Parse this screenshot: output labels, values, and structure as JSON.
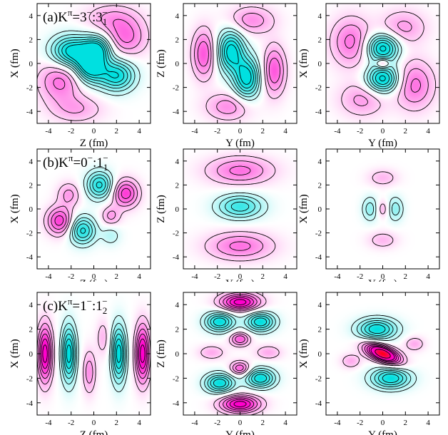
{
  "figure": {
    "rows": [
      {
        "row_label": {
          "prefix": "(a)K",
          "sup1": "π",
          "mid": "=3",
          "sup2": "−",
          "sep": ":3",
          "sub": "1",
          "sup3": "−"
        },
        "panels": [
          {
            "xlabel": "Z (fm)",
            "ylabel": "X (fm)"
          },
          {
            "xlabel": "Y (fm)",
            "ylabel": "Z (fm)"
          },
          {
            "xlabel": "Y (fm)",
            "ylabel": "X (fm)"
          }
        ]
      },
      {
        "row_label": {
          "prefix": "(b)K",
          "sup1": "π",
          "mid": "=0",
          "sup2": "−",
          "sep": ":1",
          "sub": "1",
          "sup3": "−"
        },
        "panels": [
          {
            "xlabel": "Z (fm)",
            "ylabel": "X (fm)"
          },
          {
            "xlabel": "Y (fm)",
            "ylabel": "Z (fm)"
          },
          {
            "xlabel": "Y (fm)",
            "ylabel": "X (fm)"
          }
        ]
      },
      {
        "row_label": {
          "prefix": "(c)K",
          "sup1": "π",
          "mid": "=1",
          "sup2": "−",
          "sep": ":1",
          "sub": "2",
          "sup3": "−"
        },
        "panels": [
          {
            "xlabel": "Z (fm)",
            "ylabel": "X (fm)"
          },
          {
            "xlabel": "Y (fm)",
            "ylabel": "Z (fm)"
          },
          {
            "xlabel": "Y (fm)",
            "ylabel": "X (fm)"
          }
        ]
      }
    ]
  },
  "chart_data": {
    "type": "heatmap",
    "description_units": "fm",
    "xlim": [
      -5,
      5
    ],
    "ylim": [
      -5,
      5
    ],
    "ticks": [
      -4,
      -2,
      0,
      2,
      4
    ],
    "tick_labels": [
      "-4",
      "-2",
      "0",
      "2",
      "4"
    ],
    "colors": {
      "positive": "#ff00cc",
      "negative": "#00e0e0",
      "strong_positive": "#ff0000",
      "contour": "#000000"
    },
    "panels": [
      {
        "row": 0,
        "col": 0,
        "lobes": [
          {
            "x": -2.0,
            "y": 1.0,
            "a": -1.0,
            "sx": 1.2,
            "sy": 0.9
          },
          {
            "x": 0.3,
            "y": 1.2,
            "a": -0.9,
            "sx": 0.9,
            "sy": 0.8
          },
          {
            "x": -0.3,
            "y": -0.3,
            "a": -1.0,
            "sx": 0.9,
            "sy": 0.9
          },
          {
            "x": 2.0,
            "y": -1.0,
            "a": -0.9,
            "sx": 1.1,
            "sy": 0.9
          },
          {
            "x": -3.0,
            "y": -1.5,
            "a": 0.5,
            "sx": 1.3,
            "sy": 1.2
          },
          {
            "x": 2.8,
            "y": 2.2,
            "a": 0.5,
            "sx": 1.3,
            "sy": 1.1
          },
          {
            "x": 1.5,
            "y": 3.8,
            "a": 0.3,
            "sx": 1.6,
            "sy": 0.8
          },
          {
            "x": -1.5,
            "y": -3.8,
            "a": 0.3,
            "sx": 1.6,
            "sy": 0.8
          }
        ]
      },
      {
        "row": 0,
        "col": 1,
        "lobes": [
          {
            "x": -0.8,
            "y": 1.0,
            "a": -1.0,
            "sx": 0.8,
            "sy": 1.2
          },
          {
            "x": 0.6,
            "y": -1.2,
            "a": -1.0,
            "sx": 0.8,
            "sy": 1.2
          },
          {
            "x": -3.2,
            "y": 0.8,
            "a": 0.6,
            "sx": 0.7,
            "sy": 1.4
          },
          {
            "x": 3.0,
            "y": -0.6,
            "a": 0.6,
            "sx": 0.7,
            "sy": 1.4
          },
          {
            "x": -1.0,
            "y": -3.6,
            "a": 0.4,
            "sx": 1.4,
            "sy": 0.8
          },
          {
            "x": 1.0,
            "y": 3.6,
            "a": 0.4,
            "sx": 1.4,
            "sy": 0.8
          }
        ]
      },
      {
        "row": 0,
        "col": 2,
        "lobes": [
          {
            "x": 0.0,
            "y": 1.3,
            "a": -1.0,
            "sx": 1.0,
            "sy": 0.8
          },
          {
            "x": 0.0,
            "y": -1.3,
            "a": -1.0,
            "sx": 1.0,
            "sy": 0.8
          },
          {
            "x": 0.0,
            "y": 0.0,
            "a": 0.6,
            "sx": 0.4,
            "sy": 0.3
          },
          {
            "x": -2.8,
            "y": 1.8,
            "a": 0.5,
            "sx": 1.2,
            "sy": 1.4
          },
          {
            "x": 2.8,
            "y": -1.8,
            "a": 0.5,
            "sx": 1.2,
            "sy": 1.4
          },
          {
            "x": -1.8,
            "y": -3.0,
            "a": 0.35,
            "sx": 1.4,
            "sy": 1.0
          },
          {
            "x": 1.8,
            "y": 3.0,
            "a": 0.35,
            "sx": 1.4,
            "sy": 1.0
          }
        ]
      },
      {
        "row": 1,
        "col": 0,
        "lobes": [
          {
            "x": 0.5,
            "y": 2.0,
            "a": -0.8,
            "sx": 0.8,
            "sy": 0.8
          },
          {
            "x": -1.0,
            "y": -1.8,
            "a": -0.8,
            "sx": 0.8,
            "sy": 0.8
          },
          {
            "x": -2.2,
            "y": 1.2,
            "a": 0.35,
            "sx": 0.7,
            "sy": 0.7
          },
          {
            "x": 2.8,
            "y": 1.3,
            "a": 0.7,
            "sx": 0.8,
            "sy": 0.8
          },
          {
            "x": -3.0,
            "y": -1.0,
            "a": 0.7,
            "sx": 0.8,
            "sy": 0.8
          },
          {
            "x": 1.5,
            "y": -0.6,
            "a": 0.35,
            "sx": 0.6,
            "sy": 0.6
          },
          {
            "x": 1.5,
            "y": -2.2,
            "a": -0.25,
            "sx": 0.6,
            "sy": 0.6
          }
        ]
      },
      {
        "row": 1,
        "col": 1,
        "lobes": [
          {
            "x": 0.0,
            "y": 0.2,
            "a": -0.7,
            "sx": 1.4,
            "sy": 0.7
          },
          {
            "x": 0.0,
            "y": 3.2,
            "a": 0.5,
            "sx": 2.0,
            "sy": 0.8
          },
          {
            "x": 0.0,
            "y": -3.1,
            "a": 0.5,
            "sx": 2.0,
            "sy": 0.8
          }
        ]
      },
      {
        "row": 1,
        "col": 2,
        "lobes": [
          {
            "x": 0.0,
            "y": 0.0,
            "a": 0.3,
            "sx": 0.4,
            "sy": 0.5
          },
          {
            "x": -1.1,
            "y": 0.0,
            "a": -0.4,
            "sx": 0.5,
            "sy": 0.7
          },
          {
            "x": 1.1,
            "y": 0.0,
            "a": -0.4,
            "sx": 0.5,
            "sy": 0.7
          },
          {
            "x": 0.0,
            "y": 2.6,
            "a": 0.25,
            "sx": 0.9,
            "sy": 0.5
          },
          {
            "x": 0.0,
            "y": -2.6,
            "a": 0.25,
            "sx": 0.9,
            "sy": 0.5
          }
        ]
      },
      {
        "row": 2,
        "col": 0,
        "lobes": [
          {
            "x": -4.3,
            "y": 0.0,
            "a": 1.0,
            "sx": 0.45,
            "sy": 1.6
          },
          {
            "x": -2.2,
            "y": 0.0,
            "a": -1.0,
            "sx": 0.45,
            "sy": 1.6
          },
          {
            "x": 2.2,
            "y": 0.0,
            "a": -1.0,
            "sx": 0.45,
            "sy": 1.6
          },
          {
            "x": 4.3,
            "y": 0.0,
            "a": 1.0,
            "sx": 0.45,
            "sy": 1.6
          },
          {
            "x": -0.4,
            "y": -1.5,
            "a": 0.4,
            "sx": 0.4,
            "sy": 1.2
          },
          {
            "x": 0.8,
            "y": 1.3,
            "a": 0.25,
            "sx": 0.4,
            "sy": 1.0
          }
        ]
      },
      {
        "row": 2,
        "col": 1,
        "lobes": [
          {
            "x": 0.0,
            "y": 4.2,
            "a": 1.0,
            "sx": 1.2,
            "sy": 0.5
          },
          {
            "x": -1.8,
            "y": 2.6,
            "a": -0.9,
            "sx": 0.9,
            "sy": 0.55
          },
          {
            "x": 1.8,
            "y": 2.6,
            "a": -0.9,
            "sx": 0.9,
            "sy": 0.55
          },
          {
            "x": 0.0,
            "y": 1.2,
            "a": 0.6,
            "sx": 0.6,
            "sy": 0.4
          },
          {
            "x": 0.0,
            "y": -1.2,
            "a": 0.6,
            "sx": 0.6,
            "sy": 0.4
          },
          {
            "x": -1.8,
            "y": -2.4,
            "a": -0.9,
            "sx": 0.9,
            "sy": 0.55
          },
          {
            "x": 1.8,
            "y": -2.0,
            "a": -0.9,
            "sx": 0.9,
            "sy": 0.55
          },
          {
            "x": 0.0,
            "y": -4.1,
            "a": 1.0,
            "sx": 1.2,
            "sy": 0.5
          },
          {
            "x": -2.5,
            "y": 0.1,
            "a": 0.3,
            "sx": 0.8,
            "sy": 0.4
          },
          {
            "x": 2.5,
            "y": 0.1,
            "a": 0.3,
            "sx": 0.8,
            "sy": 0.4
          }
        ]
      },
      {
        "row": 2,
        "col": 2,
        "lobes": [
          {
            "x": 0.0,
            "y": 0.0,
            "a": 1.5,
            "sx": 1.1,
            "sy": 0.45,
            "rot": -20
          },
          {
            "x": -0.5,
            "y": 2.0,
            "a": -0.9,
            "sx": 1.2,
            "sy": 0.6
          },
          {
            "x": 0.7,
            "y": -2.0,
            "a": -0.9,
            "sx": 1.2,
            "sy": 0.6
          },
          {
            "x": 2.8,
            "y": 0.8,
            "a": 0.3,
            "sx": 0.6,
            "sy": 0.4
          },
          {
            "x": -2.8,
            "y": -0.6,
            "a": 0.3,
            "sx": 0.6,
            "sy": 0.4
          }
        ]
      }
    ]
  }
}
